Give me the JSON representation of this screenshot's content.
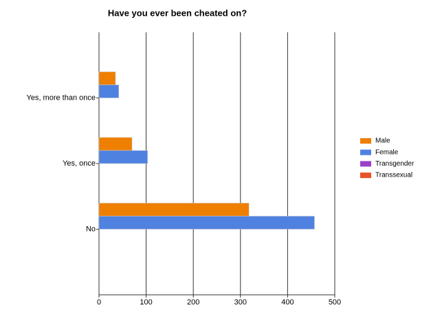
{
  "chart_data": {
    "type": "bar",
    "orientation": "horizontal",
    "title": "Have you ever been cheated on?",
    "categories": [
      "Yes, more than once",
      "Yes, once",
      "No"
    ],
    "series": [
      {
        "name": "Male",
        "color": "#ee7f00",
        "values": [
          35,
          70,
          318
        ]
      },
      {
        "name": "Female",
        "color": "#4f81e0",
        "values": [
          42,
          103,
          457
        ]
      },
      {
        "name": "Transgender",
        "color": "#9b3fc8",
        "values": [
          0,
          0,
          0
        ]
      },
      {
        "name": "Transsexual",
        "color": "#e8522a",
        "values": [
          0,
          0,
          0
        ]
      }
    ],
    "xlim": [
      0,
      500
    ],
    "xticks": [
      0,
      100,
      200,
      300,
      400,
      500
    ],
    "grid": true,
    "legend": "right"
  }
}
